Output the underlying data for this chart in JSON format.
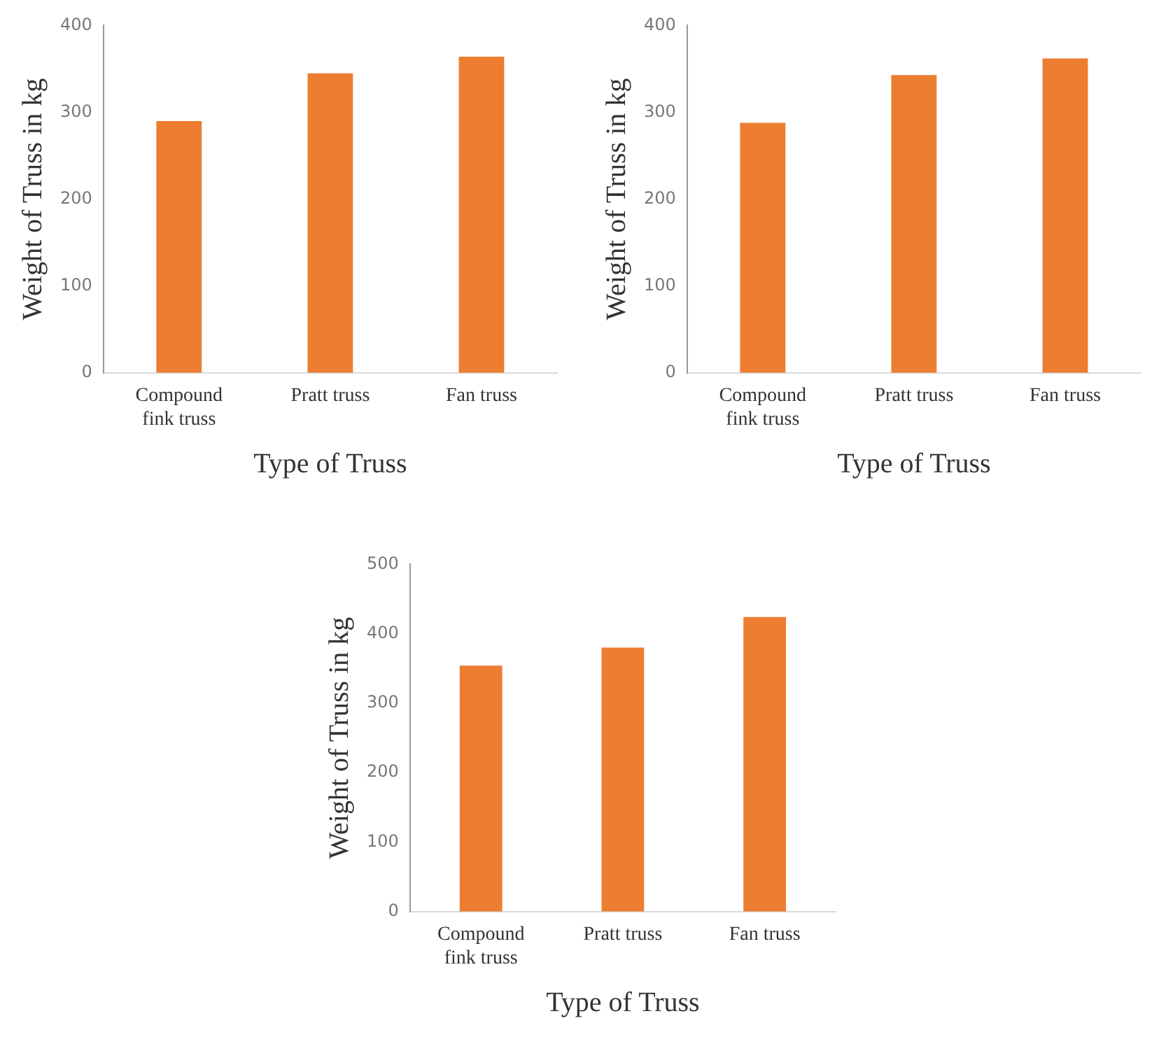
{
  "chart_data": [
    {
      "type": "bar",
      "categories": [
        "Compound fink truss",
        "Pratt truss",
        "Fan truss"
      ],
      "values": [
        290,
        345,
        364
      ],
      "color": "#ed7d31",
      "xlabel": "Type of Truss",
      "ylabel": "Weight of Truss in kg",
      "ylim": [
        0,
        400
      ],
      "yticks": [
        0,
        100,
        200,
        300,
        400
      ],
      "grid": false,
      "legend": false
    },
    {
      "type": "bar",
      "categories": [
        "Compound fink truss",
        "Pratt truss",
        "Fan truss"
      ],
      "values": [
        288,
        343,
        362
      ],
      "color": "#ed7d31",
      "xlabel": "Type of Truss",
      "ylabel": "Weight of Truss in kg",
      "ylim": [
        0,
        400
      ],
      "yticks": [
        0,
        100,
        200,
        300,
        400
      ],
      "grid": false,
      "legend": false
    },
    {
      "type": "bar",
      "categories": [
        "Compound fink truss",
        "Pratt truss",
        "Fan truss"
      ],
      "values": [
        354,
        380,
        424
      ],
      "color": "#ed7d31",
      "xlabel": "Type of Truss",
      "ylabel": "Weight of Truss in kg",
      "ylim": [
        0,
        500
      ],
      "yticks": [
        0,
        100,
        200,
        300,
        400,
        500
      ],
      "grid": false,
      "legend": false
    }
  ]
}
